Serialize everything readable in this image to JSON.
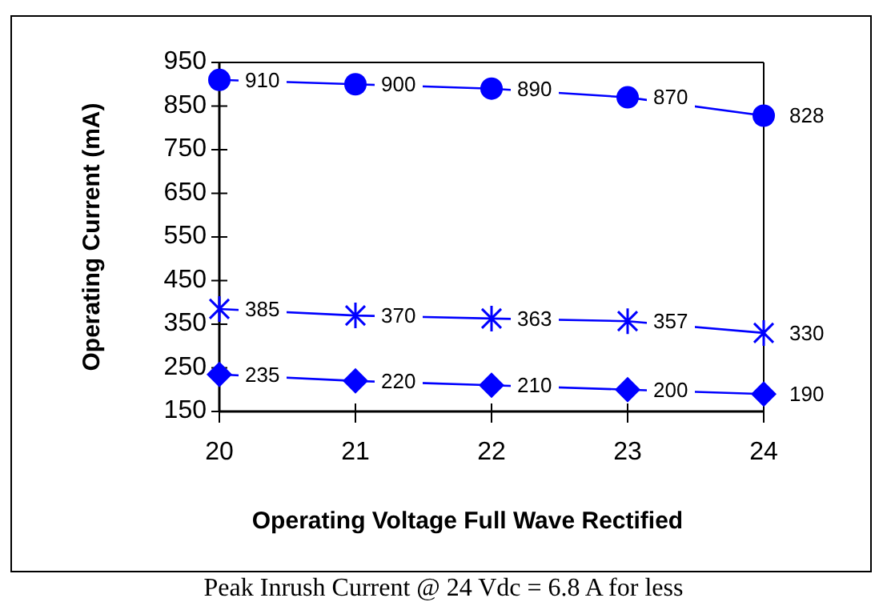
{
  "chart_data": {
    "type": "line",
    "xlabel": "Operating Voltage Full Wave Rectified",
    "ylabel": "Operating Current (mA)",
    "x": [
      20,
      21,
      22,
      23,
      24
    ],
    "series": [
      {
        "color": "#0000ff",
        "marker": "circle",
        "values": [
          910,
          900,
          890,
          870,
          828
        ]
      },
      {
        "color": "#0000ff",
        "marker": "cross",
        "values": [
          385,
          370,
          363,
          357,
          330
        ]
      },
      {
        "color": "#0000ff",
        "marker": "diamond",
        "values": [
          235,
          220,
          210,
          200,
          190
        ]
      }
    ],
    "xlim": [
      20,
      24
    ],
    "xticks": [
      20,
      21,
      22,
      23,
      24
    ],
    "ylim": [
      150,
      950
    ],
    "yticks": [
      150,
      250,
      350,
      450,
      550,
      650,
      750,
      850,
      950
    ],
    "grid": false,
    "data_labels": true,
    "annotations": [
      "Peak Inrush Current @ 24 Vdc = 6.8 A for less"
    ]
  }
}
